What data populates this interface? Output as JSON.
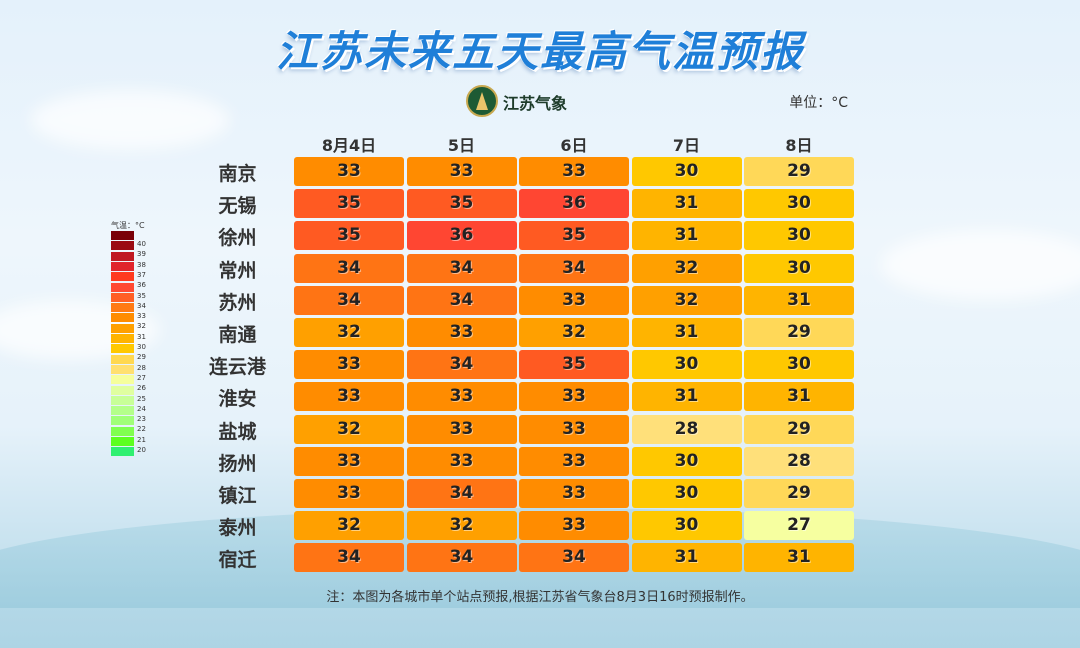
{
  "title": "江苏未来五天最高气温预报",
  "logo_text": "江苏气象",
  "unit": "单位：°C",
  "footnote": "注：本图为各城市单个站点预报,根据江苏省气象台8月3日16时预报制作。",
  "legend": {
    "title": "气温：°C",
    "labels": [
      "40",
      "39",
      "38",
      "37",
      "36",
      "35",
      "34",
      "33",
      "32",
      "31",
      "30",
      "29",
      "28",
      "27",
      "26",
      "25",
      "24",
      "23",
      "22",
      "21",
      "20"
    ],
    "colors": [
      "#7a0008",
      "#9b0a12",
      "#c01822",
      "#e0242c",
      "#ff3a20",
      "#ff4a33",
      "#ff5f26",
      "#ff7a14",
      "#ff8c00",
      "#ffa000",
      "#ffb300",
      "#ffc800",
      "#ffd850",
      "#ffe070",
      "#f6ff9c",
      "#e0ffa0",
      "#c8ff98",
      "#b4ff8a",
      "#a0ff78",
      "#80ff50",
      "#5cff20",
      "#30f070"
    ]
  },
  "chart_data": {
    "type": "heatmap",
    "title": "江苏未来五天最高气温预报",
    "columns": [
      "8月4日",
      "5日",
      "6日",
      "7日",
      "8日"
    ],
    "rows": [
      "南京",
      "无锡",
      "徐州",
      "常州",
      "苏州",
      "南通",
      "连云港",
      "淮安",
      "盐城",
      "扬州",
      "镇江",
      "泰州",
      "宿迁"
    ],
    "values": [
      [
        33,
        33,
        33,
        30,
        29
      ],
      [
        35,
        35,
        36,
        31,
        30
      ],
      [
        35,
        36,
        35,
        31,
        30
      ],
      [
        34,
        34,
        34,
        32,
        30
      ],
      [
        34,
        34,
        33,
        32,
        31
      ],
      [
        32,
        33,
        32,
        31,
        29
      ],
      [
        33,
        34,
        35,
        30,
        30
      ],
      [
        33,
        33,
        33,
        31,
        31
      ],
      [
        32,
        33,
        33,
        28,
        29
      ],
      [
        33,
        33,
        33,
        30,
        28
      ],
      [
        33,
        34,
        33,
        30,
        29
      ],
      [
        32,
        32,
        33,
        30,
        27
      ],
      [
        34,
        34,
        34,
        31,
        31
      ]
    ],
    "color_scale": {
      "27": "#f6ffa0",
      "28": "#ffe07a",
      "29": "#ffd858",
      "30": "#ffc800",
      "31": "#ffb400",
      "32": "#ffa000",
      "33": "#ff8c00",
      "34": "#ff7414",
      "35": "#ff5a22",
      "36": "#ff4632"
    },
    "unit": "°C"
  }
}
